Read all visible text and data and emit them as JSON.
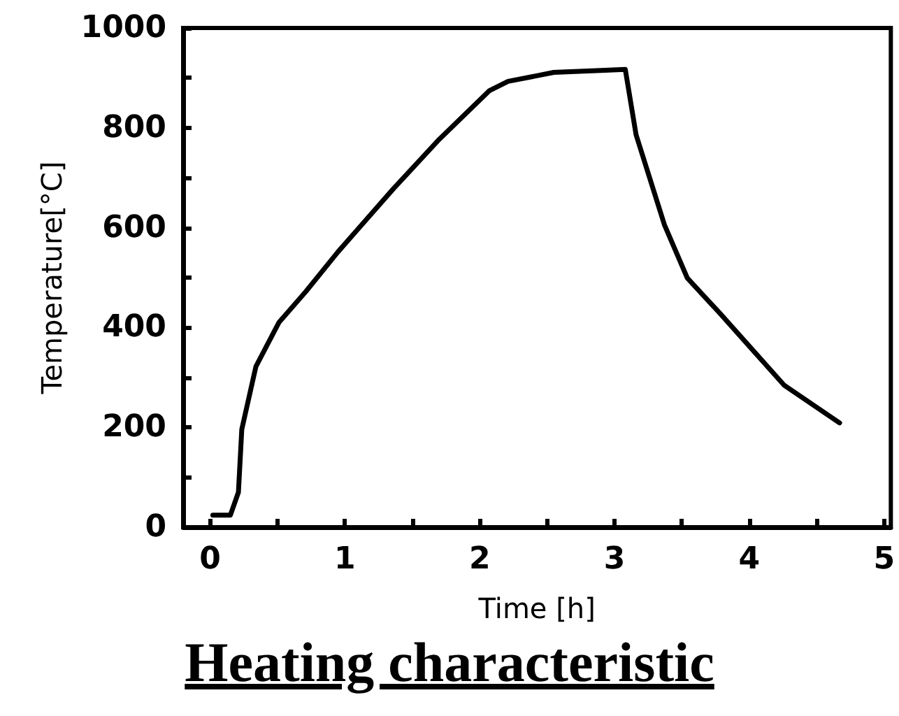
{
  "chart_data": {
    "type": "line",
    "title": "Heating characteristic",
    "xlabel": "Time [h]",
    "ylabel": "Temperature[°C]",
    "xlim": [
      -0.2,
      5.05
    ],
    "xticks": [
      0,
      {
        "value": 0.5,
        "label": null
      },
      1,
      {
        "value": 1.5,
        "label": null
      },
      2,
      {
        "value": 2.5,
        "label": null
      },
      3,
      {
        "value": 3.5,
        "label": null
      },
      4,
      {
        "value": 4.5,
        "label": null
      },
      5
    ],
    "ylim": [
      0,
      1000
    ],
    "yticks": [
      0,
      {
        "value": 100,
        "label": null
      },
      200,
      {
        "value": 300,
        "label": null
      },
      400,
      {
        "value": 500,
        "label": null
      },
      600,
      {
        "value": 700,
        "label": null
      },
      800,
      {
        "value": 900,
        "label": null
      },
      1000
    ],
    "grid": false,
    "marker": "none",
    "line_style": "solid",
    "series": [
      {
        "color": "#000000",
        "x": [
          0.02,
          0.15,
          0.21,
          0.235,
          0.34,
          0.51,
          0.71,
          0.95,
          1.36,
          1.7,
          2.07,
          2.21,
          2.55,
          2.9,
          3.08,
          3.16,
          3.37,
          3.54,
          3.78,
          4.26,
          4.67
        ],
        "values": [
          24,
          24,
          70,
          196,
          322,
          410,
          472,
          552,
          678,
          777,
          874,
          893,
          911,
          915,
          917,
          786,
          606,
          499,
          429,
          284,
          209
        ]
      }
    ]
  }
}
